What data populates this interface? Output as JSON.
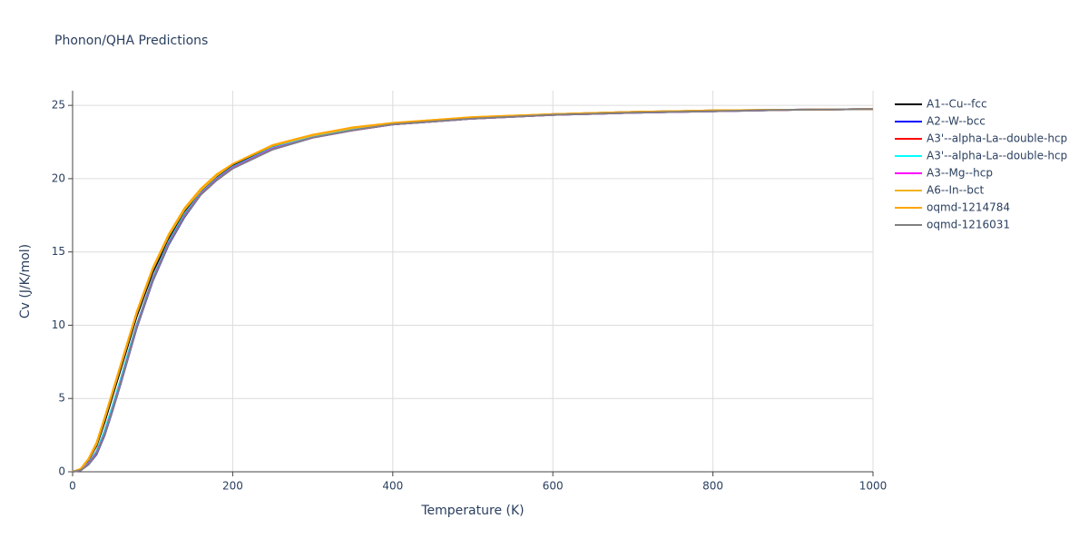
{
  "chart_data": {
    "type": "line",
    "title": "Phonon/QHA Predictions",
    "x_label": "Temperature (K)",
    "y_label": "Cv (J/K/mol)",
    "x": [
      0,
      10,
      20,
      30,
      40,
      50,
      60,
      70,
      80,
      100,
      120,
      140,
      160,
      180,
      200,
      250,
      300,
      350,
      400,
      500,
      600,
      700,
      800,
      900,
      1000
    ],
    "series": [
      {
        "name": "A1--Cu--fcc",
        "color": "#000000",
        "values": [
          0,
          0.15,
          0.8,
          1.8,
          3.4,
          5.2,
          7.0,
          8.8,
          10.6,
          13.6,
          15.9,
          17.8,
          19.1,
          20.1,
          20.9,
          22.2,
          22.9,
          23.4,
          23.75,
          24.15,
          24.4,
          24.55,
          24.65,
          24.7,
          24.75
        ]
      },
      {
        "name": "A2--W--bcc",
        "color": "#0000ff",
        "values": [
          0,
          0.1,
          0.5,
          1.2,
          2.5,
          4.2,
          6.0,
          7.9,
          9.8,
          13.0,
          15.5,
          17.4,
          18.9,
          19.9,
          20.7,
          22.0,
          22.8,
          23.3,
          23.7,
          24.1,
          24.35,
          24.5,
          24.6,
          24.7,
          24.75
        ]
      },
      {
        "name": "A3'--alpha-La--double-hcp",
        "color": "#ff0000",
        "values": [
          0,
          0.12,
          0.6,
          1.4,
          2.8,
          4.5,
          6.3,
          8.2,
          10.0,
          13.2,
          15.7,
          17.6,
          19.0,
          20.0,
          20.8,
          22.1,
          22.85,
          23.35,
          23.7,
          24.1,
          24.35,
          24.5,
          24.6,
          24.7,
          24.75
        ]
      },
      {
        "name": "A3'--alpha-La--double-hcp",
        "color": "#00ffff",
        "values": [
          0,
          0.12,
          0.6,
          1.4,
          2.8,
          4.5,
          6.3,
          8.2,
          10.0,
          13.2,
          15.7,
          17.6,
          19.0,
          20.0,
          20.8,
          22.1,
          22.85,
          23.35,
          23.7,
          24.1,
          24.35,
          24.5,
          24.6,
          24.7,
          24.75
        ]
      },
      {
        "name": "A3--Mg--hcp",
        "color": "#ff00ff",
        "values": [
          0,
          0.1,
          0.55,
          1.3,
          2.6,
          4.3,
          6.1,
          8.0,
          9.9,
          13.1,
          15.6,
          17.5,
          18.95,
          19.95,
          20.75,
          22.05,
          22.8,
          23.3,
          23.7,
          24.1,
          24.35,
          24.5,
          24.6,
          24.7,
          24.75
        ]
      },
      {
        "name": "A6--In--bct",
        "color": "#f0b41e",
        "values": [
          0,
          0.18,
          0.85,
          1.9,
          3.6,
          5.4,
          7.2,
          9.0,
          10.8,
          13.8,
          16.1,
          17.9,
          19.2,
          20.2,
          21.0,
          22.25,
          22.95,
          23.45,
          23.8,
          24.2,
          24.4,
          24.55,
          24.65,
          24.7,
          24.75
        ]
      },
      {
        "name": "oqmd-1214784",
        "color": "#ffa500",
        "values": [
          0,
          0.2,
          0.9,
          2.0,
          3.7,
          5.5,
          7.3,
          9.1,
          10.9,
          13.9,
          16.2,
          18.0,
          19.3,
          20.3,
          21.0,
          22.3,
          23.0,
          23.5,
          23.8,
          24.2,
          24.4,
          24.55,
          24.65,
          24.7,
          24.75
        ]
      },
      {
        "name": "oqmd-1216031",
        "color": "#808080",
        "values": [
          0,
          0.1,
          0.5,
          1.25,
          2.55,
          4.25,
          6.05,
          7.95,
          9.85,
          13.05,
          15.55,
          17.45,
          18.9,
          19.9,
          20.7,
          22.0,
          22.8,
          23.3,
          23.7,
          24.1,
          24.35,
          24.5,
          24.6,
          24.7,
          24.75
        ]
      }
    ],
    "xlim": [
      0,
      1000
    ],
    "xticks": [
      0,
      200,
      400,
      600,
      800,
      1000
    ],
    "ylim": [
      0,
      26
    ],
    "yticks": [
      0,
      5,
      10,
      15,
      20,
      25
    ],
    "grid": true,
    "legend": "right"
  }
}
